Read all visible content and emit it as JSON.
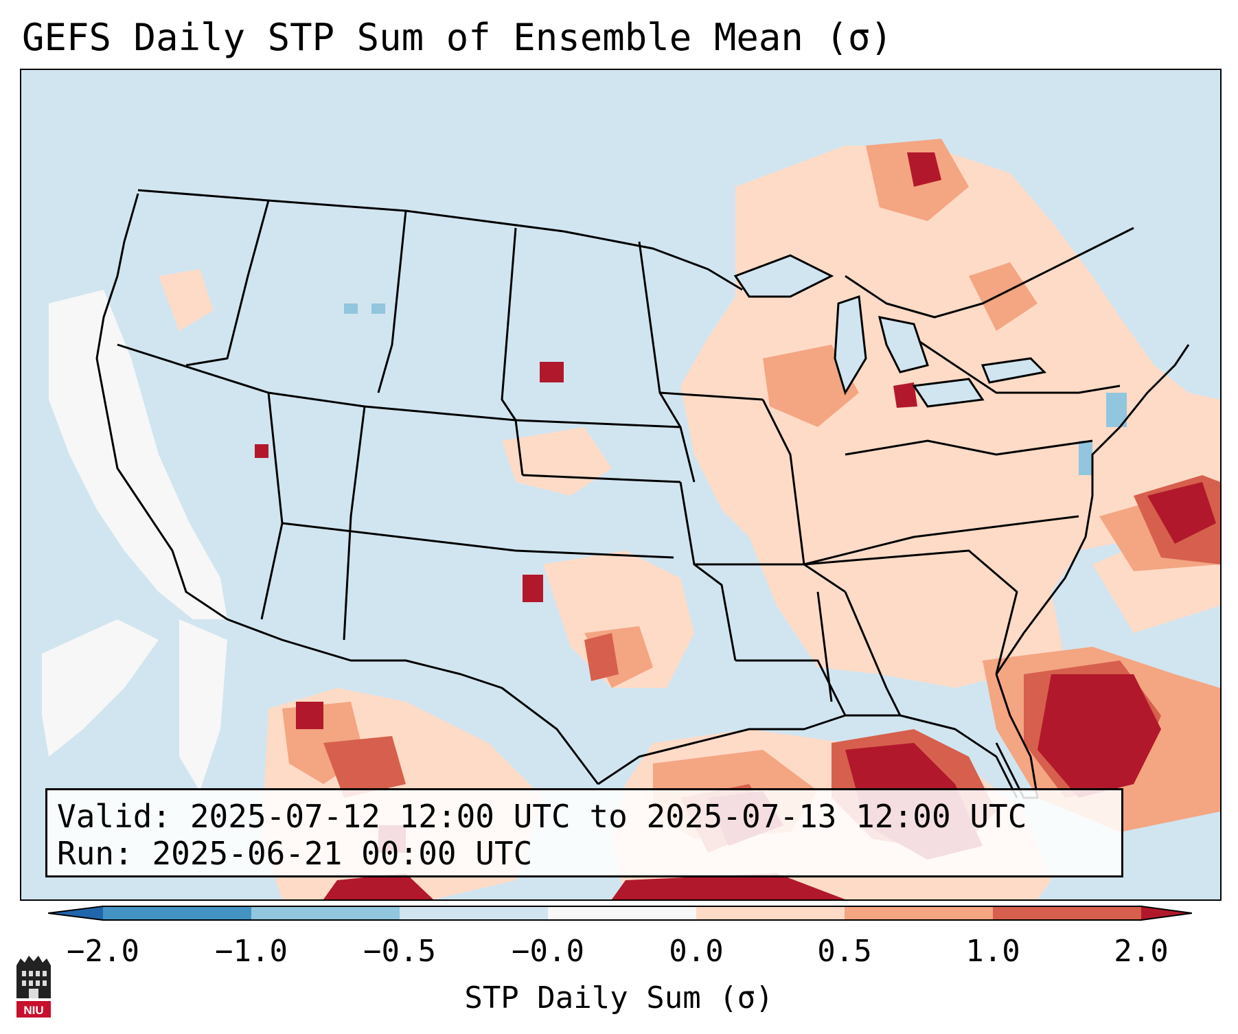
{
  "title": "GEFS Daily STP Sum of Ensemble Mean (σ)",
  "info": {
    "valid_line": "Valid: 2025-07-12 12:00 UTC to 2025-07-13 12:00 UTC",
    "run_line": "Run:   2025-06-21 00:00 UTC"
  },
  "colorbar": {
    "label": "STP Daily Sum (σ)",
    "ticks": [
      "−2.0",
      "−1.0",
      "−0.5",
      "−0.0",
      "0.0",
      "0.5",
      "1.0",
      "2.0"
    ],
    "colors": {
      "under": "#2166ac",
      "bins": [
        "#4393c3",
        "#92c5de",
        "#d1e5f0",
        "#f7f7f7",
        "#fddbc7",
        "#f4a582",
        "#d6604d"
      ],
      "over": "#b2182b"
    }
  },
  "logo": {
    "text": "NIU",
    "color": "#c8102e"
  }
}
